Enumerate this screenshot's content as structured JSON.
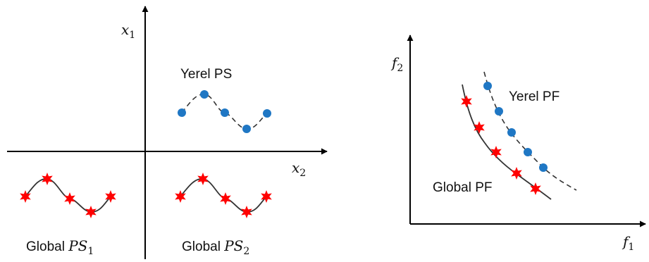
{
  "colors": {
    "axis": "#000000",
    "curve": "#333333",
    "local_point": "#1f77c4",
    "global_star": "#ff0000"
  },
  "left_diagram": {
    "x_axis_label": "x",
    "x_axis_subscript": "2",
    "y_axis_label": "x",
    "y_axis_subscript": "1",
    "local_set": {
      "label": "Yerel PS",
      "marker": "circle",
      "line_style": "dashed"
    },
    "global_set_1": {
      "label_prefix": "Global ",
      "label_math": "PS",
      "label_subscript": "1",
      "marker": "star",
      "line_style": "solid"
    },
    "global_set_2": {
      "label_prefix": "Global ",
      "label_math": "PS",
      "label_subscript": "2",
      "marker": "star",
      "line_style": "solid"
    }
  },
  "right_diagram": {
    "x_axis_label": "f",
    "x_axis_subscript": "1",
    "y_axis_label": "f",
    "y_axis_subscript": "2",
    "local_front": {
      "label": "Yerel PF",
      "marker": "circle",
      "line_style": "dashed"
    },
    "global_front": {
      "label": "Global PF",
      "marker": "star",
      "line_style": "solid"
    }
  }
}
